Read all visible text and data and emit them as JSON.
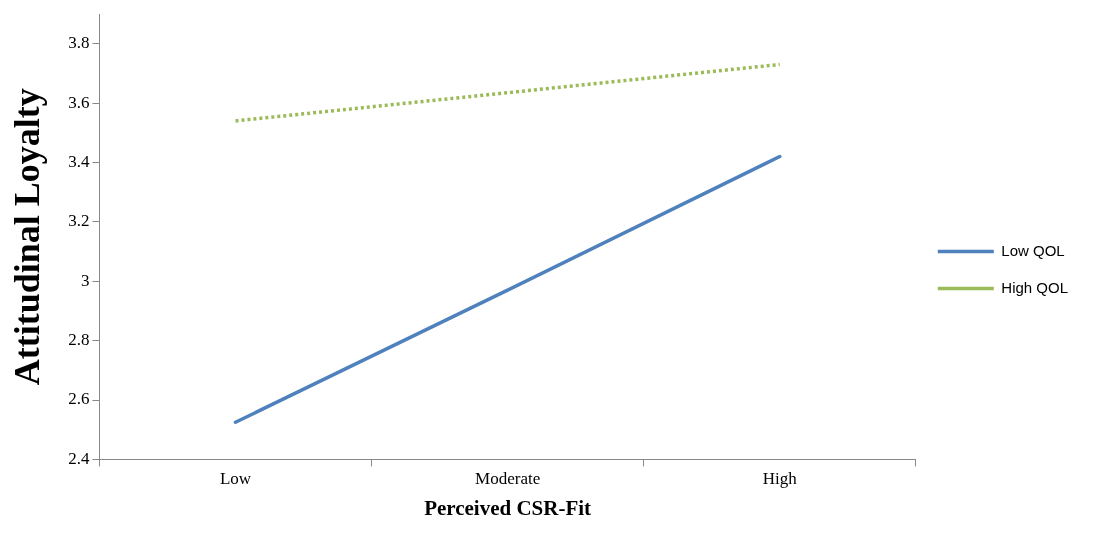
{
  "chart_data": {
    "type": "line",
    "xlabel": "Perceived CSR-Fit",
    "ylabel": "Attitudinal Loyalty",
    "categories": [
      "Low",
      "Moderate",
      "High"
    ],
    "series": [
      {
        "name": "Low QOL",
        "color": "#4f81bd",
        "values": [
          2.525,
          2.97,
          3.42
        ],
        "line_style": "solid"
      },
      {
        "name": "High QOL",
        "color": "#9bbb59",
        "values": [
          3.54,
          3.635,
          3.73
        ],
        "line_style": "dotted"
      }
    ],
    "ylim": [
      2.4,
      3.9
    ],
    "yticks": [
      2.4,
      2.6,
      2.8,
      3,
      3.2,
      3.4,
      3.6,
      3.8
    ],
    "grid": false,
    "legend": "right",
    "marker": "none"
  }
}
